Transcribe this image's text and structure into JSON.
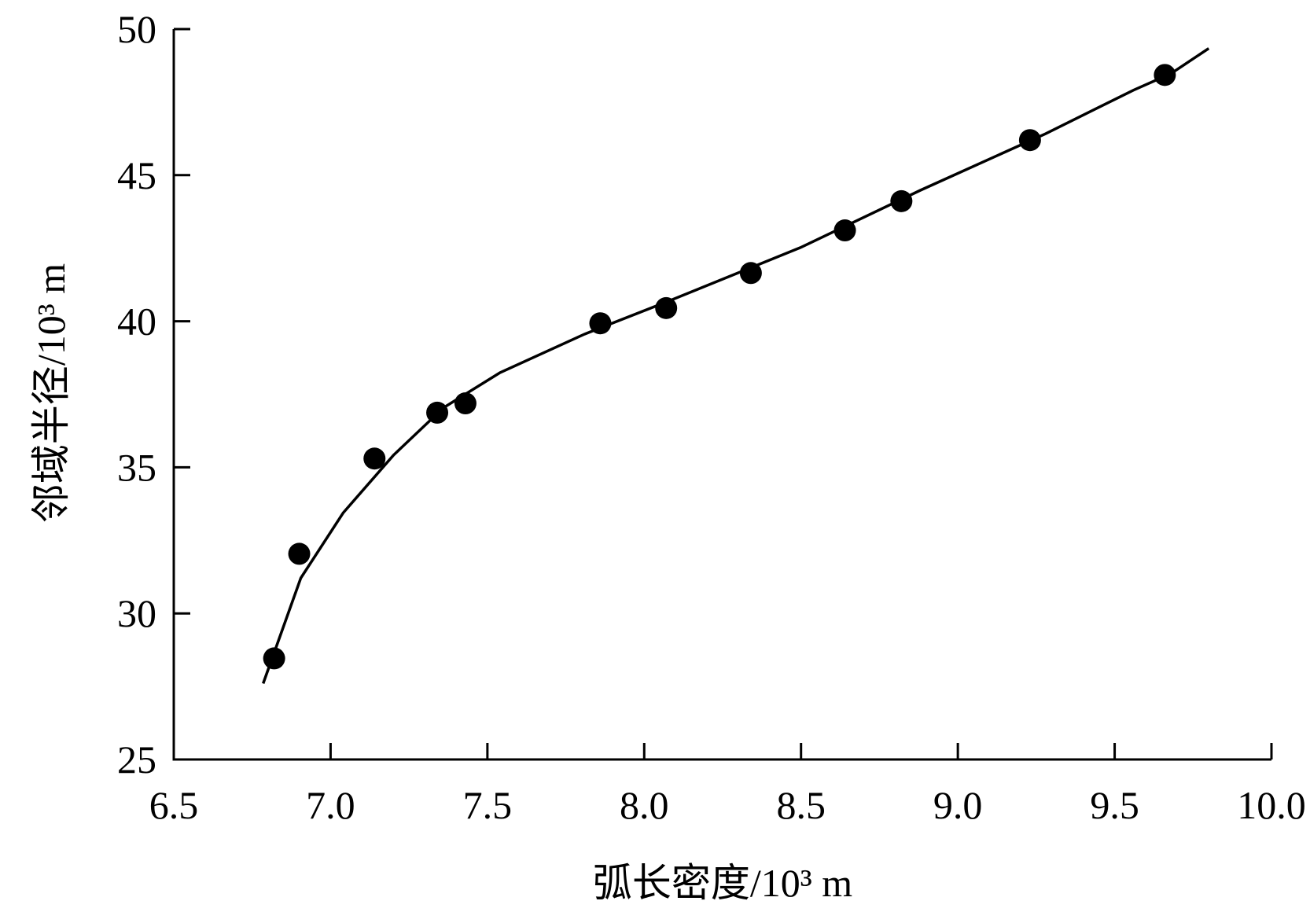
{
  "chart_data": {
    "type": "scatter",
    "x_label": "弧长密度/10³ m",
    "y_label": "邻域半径/10³ m",
    "xlim": [
      6.5,
      10.0
    ],
    "xticks": [
      6.5,
      {
        "value": 7,
        "label": "7.0"
      },
      7.5,
      {
        "value": 8,
        "label": "8.0"
      },
      8.5,
      {
        "value": 9,
        "label": "9.0"
      },
      9.5,
      {
        "value": 10,
        "label": "10.0"
      }
    ],
    "ylim": [
      25,
      50
    ],
    "yticks": [
      25,
      30,
      35,
      40,
      45,
      50
    ],
    "series": [
      {
        "mode": "markers",
        "color": "#000000",
        "x": [
          6.82,
          6.9,
          7.14,
          7.34,
          7.43,
          7.86,
          8.07,
          8.34,
          8.64,
          8.82,
          9.23,
          9.66
        ],
        "values": [
          28.46,
          32.04,
          35.3,
          36.87,
          37.19,
          39.93,
          40.45,
          41.65,
          43.11,
          44.11,
          46.2,
          48.43
        ]
      },
      {
        "mode": "line",
        "color": "#000000",
        "x": [
          6.785,
          6.905,
          7.04,
          7.2,
          7.36,
          7.54,
          7.81,
          8.08,
          8.5,
          8.88,
          9.28,
          9.56,
          9.68,
          9.8
        ],
        "values": [
          27.6,
          31.21,
          33.44,
          35.41,
          37.04,
          38.24,
          39.56,
          40.7,
          42.53,
          44.48,
          46.42,
          47.91,
          48.48,
          49.34
        ]
      }
    ]
  }
}
